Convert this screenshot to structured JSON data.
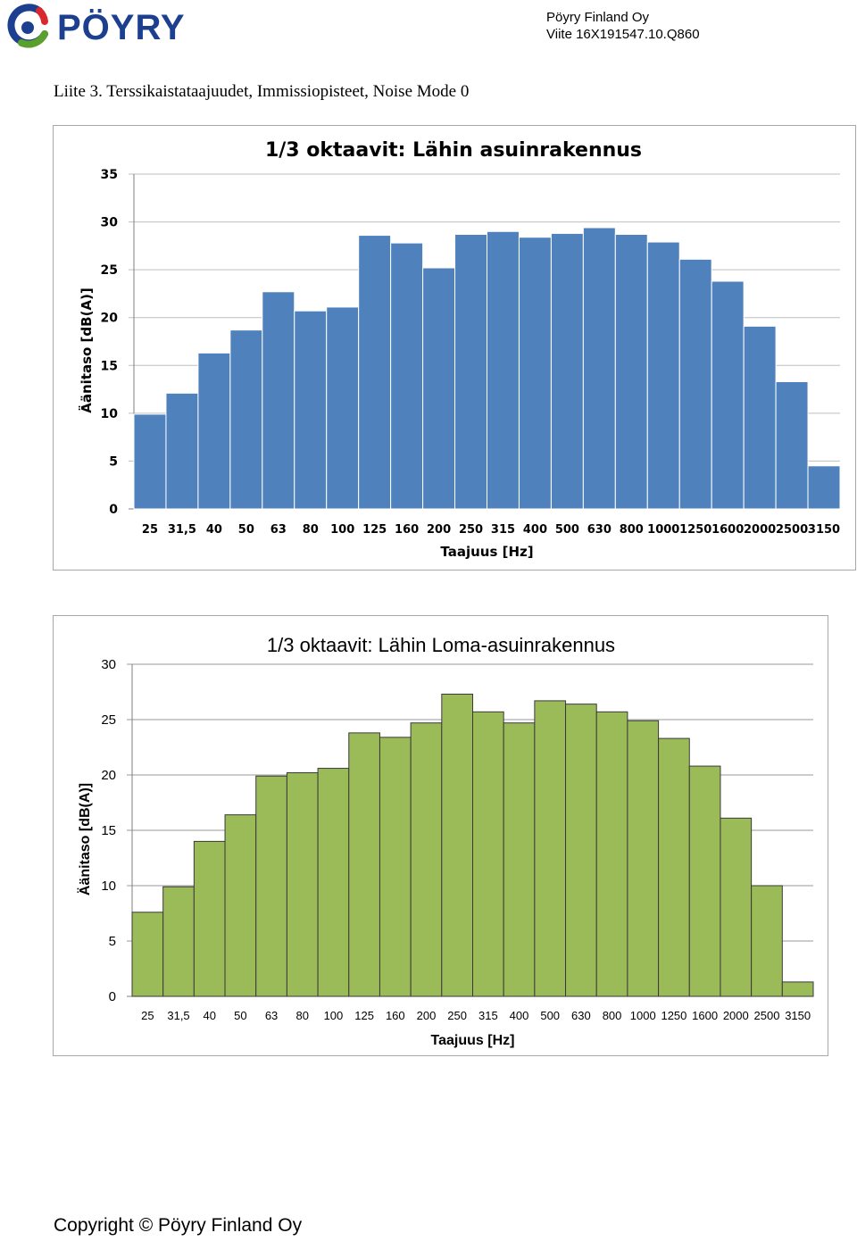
{
  "header": {
    "logo_text": "PÖYRY",
    "company": "Pöyry Finland Oy",
    "reference": "Viite 16X191547.10.Q860"
  },
  "page_title": "Liite 3. Terssikaistataajuudet, Immissiopisteet, Noise Mode 0",
  "colors": {
    "chart1_bar": "#4f81bd",
    "chart2_bar": "#9bbb59",
    "logo_blue": "#1d3f8f",
    "logo_green": "#5aa02c",
    "logo_red": "#d9272e"
  },
  "chart_data": [
    {
      "type": "bar",
      "title": "1/3 oktaavit: Lähin asuinrakennus",
      "xlabel": "Taajuus [Hz]",
      "ylabel": "Äänitaso [dB(A)]",
      "categories": [
        "25",
        "31,5",
        "40",
        "50",
        "63",
        "80",
        "100",
        "125",
        "160",
        "200",
        "250",
        "315",
        "400",
        "500",
        "630",
        "800",
        "1000",
        "1250",
        "1600",
        "2000",
        "2500",
        "3150"
      ],
      "values": [
        9.9,
        12.1,
        16.3,
        18.7,
        22.7,
        20.7,
        21.1,
        28.6,
        27.8,
        25.2,
        28.7,
        29.0,
        28.4,
        28.8,
        29.4,
        28.7,
        27.9,
        26.1,
        23.8,
        19.1,
        13.3,
        4.5
      ],
      "ylim": [
        0,
        35
      ],
      "yticks": [
        0,
        5,
        10,
        15,
        20,
        25,
        30,
        35
      ],
      "grid": true
    },
    {
      "type": "bar",
      "title": "1/3 oktaavit: Lähin Loma-asuinrakennus",
      "xlabel": "Taajuus [Hz]",
      "ylabel": "Äänitaso [dB(A)]",
      "categories": [
        "25",
        "31,5",
        "40",
        "50",
        "63",
        "80",
        "100",
        "125",
        "160",
        "200",
        "250",
        "315",
        "400",
        "500",
        "630",
        "800",
        "1000",
        "1250",
        "1600",
        "2000",
        "2500",
        "3150"
      ],
      "values": [
        7.6,
        9.9,
        14.0,
        16.4,
        19.9,
        20.2,
        20.6,
        23.8,
        23.4,
        24.7,
        27.3,
        25.7,
        24.7,
        26.7,
        26.4,
        25.7,
        24.9,
        23.3,
        20.8,
        16.1,
        10.0,
        1.3
      ],
      "ylim": [
        0,
        30
      ],
      "yticks": [
        0,
        5,
        10,
        15,
        20,
        25,
        30
      ],
      "grid": true
    }
  ],
  "footer": {
    "copyright": "Copyright © Pöyry Finland Oy"
  }
}
